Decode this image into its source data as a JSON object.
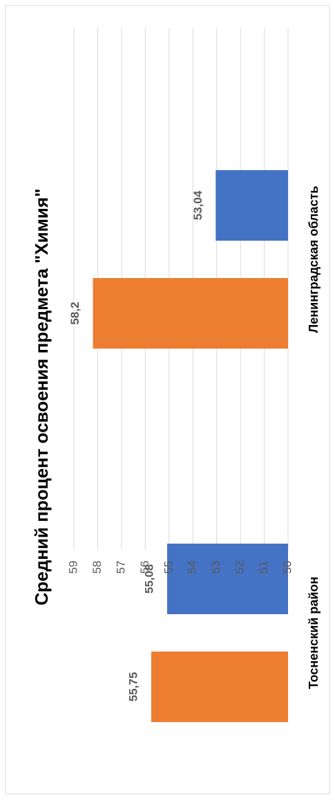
{
  "chart_data": {
    "type": "bar",
    "orientation": "rotated-90-ccw",
    "title": "Средний процент освоения предмета \"Химия\"",
    "categories": [
      "Тосненский район",
      "Ленинградская область"
    ],
    "series": [
      {
        "values": [
          55.08,
          53.04
        ],
        "labels": [
          "55,08",
          "53,04"
        ],
        "color": "#4472C4"
      },
      {
        "values": [
          55.75,
          58.2
        ],
        "labels": [
          "55,75",
          "58,2"
        ],
        "color": "#ED7D31"
      }
    ],
    "yaxis": {
      "min": 50,
      "max": 59,
      "ticks": [
        "50",
        "51",
        "52",
        "53",
        "54",
        "55",
        "56",
        "57",
        "58",
        "59"
      ]
    },
    "grid": true,
    "legend": "none",
    "colors": {
      "border": "#D9D9D9",
      "grid": "#D9D9D9",
      "text": "#000000",
      "label": "#595959"
    }
  }
}
